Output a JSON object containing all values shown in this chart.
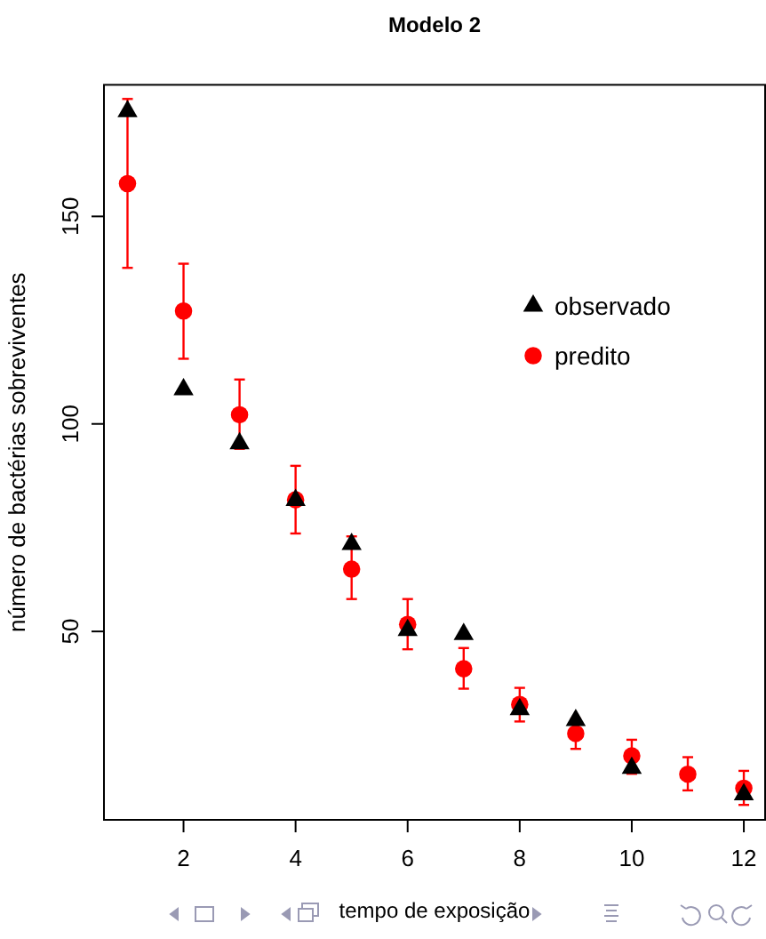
{
  "chart_data": {
    "type": "scatter",
    "title": "Modelo 2",
    "xlabel": "tempo de exposição",
    "ylabel": "número de bactérias sobreviventes",
    "x": [
      1,
      2,
      3,
      4,
      5,
      6,
      7,
      8,
      9,
      10,
      11,
      12
    ],
    "xlim": [
      0.58,
      12.38
    ],
    "ylim": [
      4.6,
      181.7
    ],
    "xticks": [
      2,
      4,
      6,
      8,
      10,
      12
    ],
    "yticks": [
      50,
      100,
      150
    ],
    "legend": "right",
    "grid": false,
    "series": [
      {
        "name": "observado",
        "color": "#000000",
        "marker": "triangle",
        "values": [
          175.3,
          108.3,
          95.3,
          81.6,
          71.0,
          50.3,
          49.3,
          31.2,
          28.6,
          17.1,
          null,
          10.7
        ]
      },
      {
        "name": "predito",
        "color": "#ff0000",
        "marker": "circle",
        "values": [
          157.9,
          127.2,
          102.2,
          81.7,
          65.0,
          51.7,
          41.0,
          32.4,
          25.4,
          20.0,
          15.6,
          12.2
        ],
        "errors": [
          [
            137.6,
            178.3
          ],
          [
            115.7,
            138.6
          ],
          [
            94.0,
            110.7
          ],
          [
            73.6,
            89.9
          ],
          [
            57.8,
            72.9
          ],
          [
            45.7,
            57.8
          ],
          [
            36.2,
            46.0
          ],
          [
            28.3,
            36.4
          ],
          [
            21.7,
            29.0
          ],
          [
            15.7,
            23.9
          ],
          [
            11.7,
            19.7
          ],
          [
            8.2,
            16.4
          ]
        ]
      }
    ]
  }
}
